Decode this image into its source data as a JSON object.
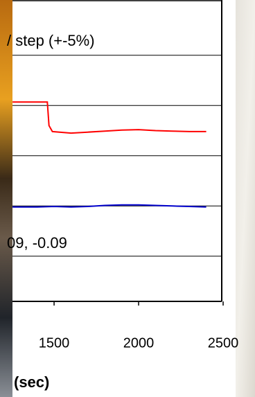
{
  "chart_data": {
    "type": "line",
    "annotations": [
      "/ step (+-5%)",
      "09, -0.09"
    ],
    "x_label": "(sec)",
    "xlim": [
      1180,
      2500
    ],
    "xticks": [
      1500,
      2000,
      2500
    ],
    "ylim": [
      0.1,
      6.1
    ],
    "yticks": [
      1,
      2,
      3,
      4,
      5
    ],
    "grid": true,
    "series": [
      {
        "color": "#ff0000",
        "x": [
          1254,
          1460,
          1470,
          1490,
          1600,
          1700,
          1800,
          1900,
          2000,
          2100,
          2200,
          2300,
          2400
        ],
        "values": [
          4.07,
          4.07,
          3.6,
          3.48,
          3.45,
          3.47,
          3.49,
          3.51,
          3.52,
          3.5,
          3.49,
          3.48,
          3.48
        ]
      },
      {
        "color": "#0000cc",
        "x": [
          1254,
          1400,
          1500,
          1600,
          1700,
          1800,
          1900,
          2000,
          2100,
          2200,
          2300,
          2400
        ],
        "values": [
          1.98,
          1.98,
          1.99,
          1.98,
          1.99,
          2.01,
          2.02,
          2.02,
          2.01,
          2.0,
          1.99,
          1.98
        ]
      }
    ]
  }
}
